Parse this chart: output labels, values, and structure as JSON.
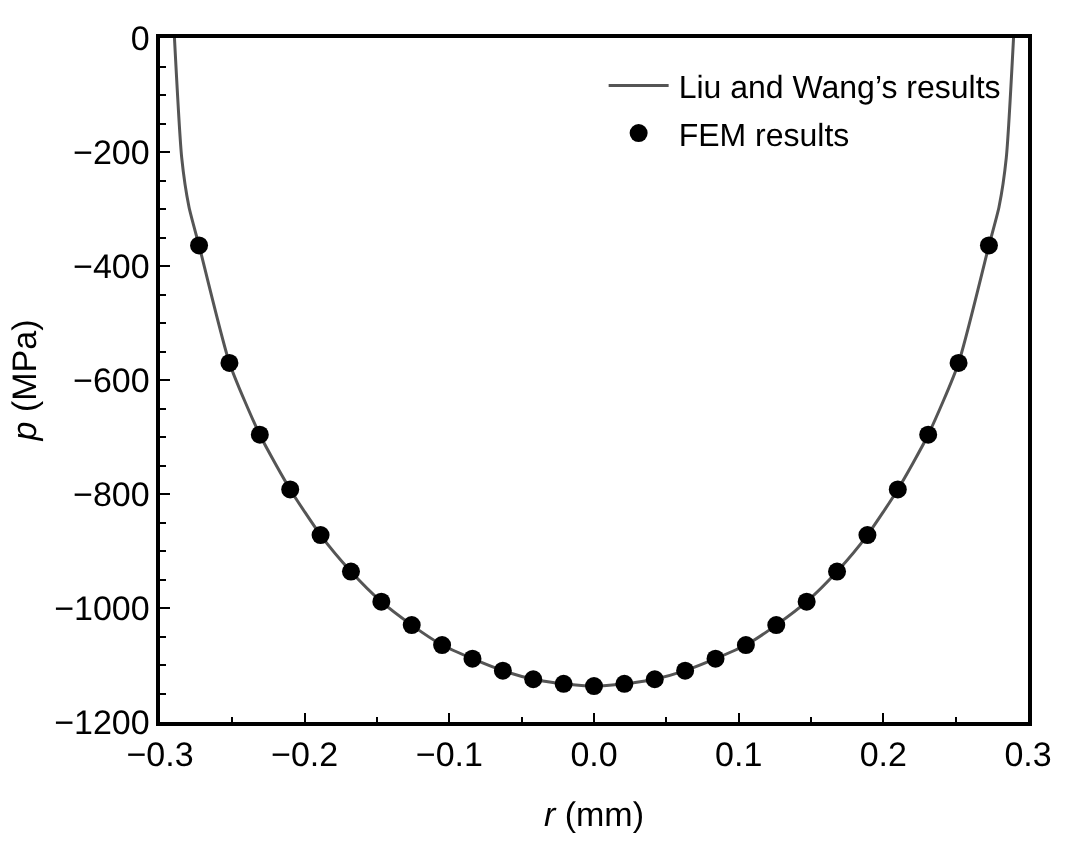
{
  "chart_data": {
    "type": "line",
    "xlabel": "r (mm)",
    "ylabel": "p (MPa)",
    "xlim": [
      -0.3,
      0.3
    ],
    "xticks": [
      {
        "value": -0.3,
        "label": "−0.3"
      },
      {
        "value": -0.2,
        "label": "−0.2"
      },
      {
        "value": -0.1,
        "label": "−0.1"
      },
      {
        "value": 0,
        "label": "0.0"
      },
      {
        "value": 0.1,
        "label": "0.1"
      },
      {
        "value": 0.2,
        "label": "0.2"
      },
      {
        "value": 0.3,
        "label": "0.3"
      }
    ],
    "ylim": [
      -1200,
      0
    ],
    "yticks": [
      {
        "value": -1200,
        "label": "−1200"
      },
      {
        "value": -1000,
        "label": "−1000"
      },
      {
        "value": -800,
        "label": "−800"
      },
      {
        "value": -600,
        "label": "−600"
      },
      {
        "value": -400,
        "label": "−400"
      },
      {
        "value": -200,
        "label": "−200"
      },
      0
    ],
    "legend": "top right",
    "series": [
      {
        "name": "Liu and Wang’s results",
        "color": "#555555",
        "marker": "none",
        "line_style": "solid",
        "x": [
          -0.29,
          -0.285,
          -0.28,
          -0.273,
          -0.252,
          -0.231,
          -0.21,
          -0.189,
          -0.168,
          -0.147,
          -0.126,
          -0.105,
          -0.084,
          -0.063,
          -0.042,
          -0.021,
          0,
          0.021,
          0.042,
          0.063,
          0.084,
          0.105,
          0.126,
          0.147,
          0.168,
          0.189,
          0.21,
          0.231,
          0.252,
          0.273,
          0.28,
          0.285,
          0.29
        ],
        "values": [
          0,
          -210,
          -296,
          -364,
          -570,
          -696,
          -792,
          -872,
          -936,
          -989,
          -1030,
          -1065,
          -1089,
          -1110,
          -1125,
          -1133,
          -1137,
          -1133,
          -1125,
          -1110,
          -1089,
          -1065,
          -1030,
          -989,
          -936,
          -872,
          -792,
          -696,
          -570,
          -364,
          -296,
          -210,
          0
        ]
      },
      {
        "name": "FEM results",
        "type": "scatter",
        "color": "#000000",
        "marker": "circle",
        "x": [
          -0.273,
          -0.252,
          -0.231,
          -0.21,
          -0.189,
          -0.168,
          -0.147,
          -0.126,
          -0.105,
          -0.084,
          -0.063,
          -0.042,
          -0.021,
          0,
          0.021,
          0.042,
          0.063,
          0.084,
          0.105,
          0.126,
          0.147,
          0.168,
          0.189,
          0.21,
          0.231,
          0.252,
          0.273
        ],
        "values": [
          -364,
          -570,
          -696,
          -792,
          -872,
          -936,
          -989,
          -1030,
          -1065,
          -1089,
          -1110,
          -1125,
          -1133,
          -1137,
          -1133,
          -1125,
          -1110,
          -1089,
          -1065,
          -1030,
          -989,
          -936,
          -872,
          -792,
          -696,
          -570,
          -364
        ]
      }
    ]
  }
}
